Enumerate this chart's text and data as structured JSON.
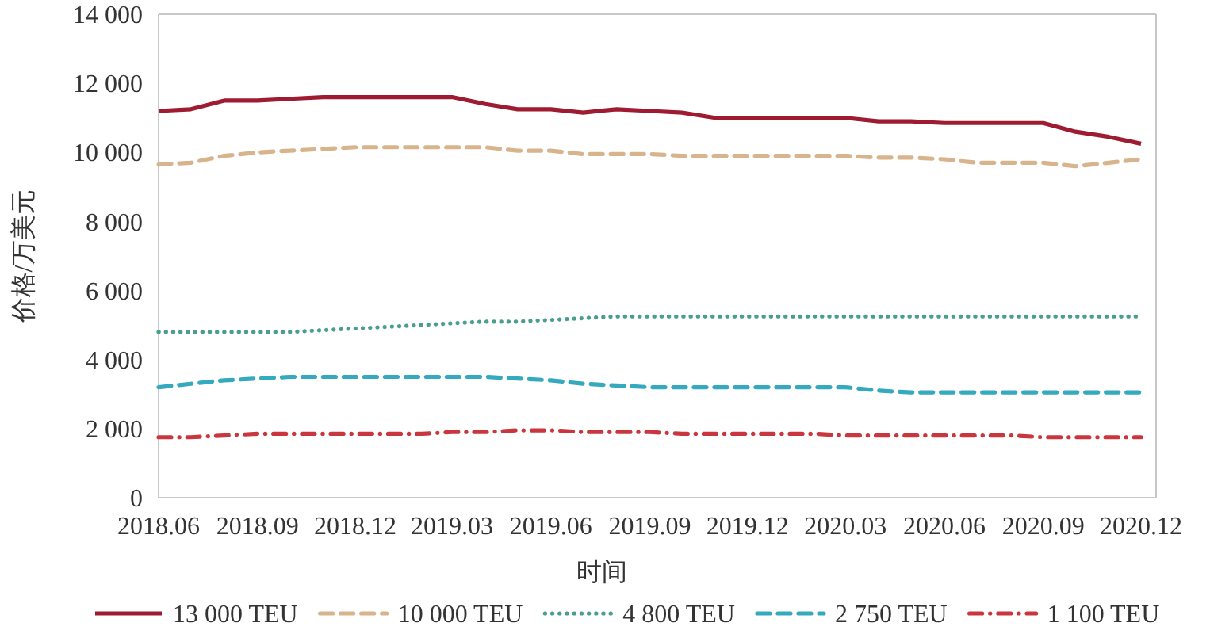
{
  "chart_data": {
    "type": "line",
    "xlabel": "时间",
    "ylabel": "价格/万美元",
    "x": [
      "2018-06",
      "2018-07",
      "2018-08",
      "2018-09",
      "2018-10",
      "2018-11",
      "2018-12",
      "2019-01",
      "2019-02",
      "2019-03",
      "2019-04",
      "2019-05",
      "2019-06",
      "2019-07",
      "2019-08",
      "2019-09",
      "2019-10",
      "2019-11",
      "2019-12",
      "2020-01",
      "2020-02",
      "2020-03",
      "2020-04",
      "2020-05",
      "2020-06",
      "2020-07",
      "2020-08",
      "2020-09",
      "2020-10",
      "2020-11",
      "2020-12"
    ],
    "xlim": [
      "2018-06",
      "2020-12-15"
    ],
    "xticks": [
      {
        "value": "2018-06",
        "label": "2018.06"
      },
      {
        "value": "2018-09",
        "label": "2018.09"
      },
      {
        "value": "2018-12",
        "label": "2018.12"
      },
      {
        "value": "2019-03",
        "label": "2019.03"
      },
      {
        "value": "2019-06",
        "label": "2019.06"
      },
      {
        "value": "2019-09",
        "label": "2019.09"
      },
      {
        "value": "2019-12",
        "label": "2019.12"
      },
      {
        "value": "2020-03",
        "label": "2020.03"
      },
      {
        "value": "2020-06",
        "label": "2020.06"
      },
      {
        "value": "2020-09",
        "label": "2020.09"
      },
      {
        "value": "2020-12",
        "label": "2020.12"
      }
    ],
    "ylim": [
      0,
      14000
    ],
    "yticks": [
      0,
      {
        "value": 2000,
        "label": "2 000"
      },
      {
        "value": 4000,
        "label": "4 000"
      },
      {
        "value": 6000,
        "label": "6 000"
      },
      {
        "value": 8000,
        "label": "8 000"
      },
      {
        "value": 10000,
        "label": "10 000"
      },
      {
        "value": 12000,
        "label": "12 000"
      },
      {
        "value": 14000,
        "label": "14 000"
      }
    ],
    "legend": "bottom",
    "series": [
      {
        "name": "13 000 TEU",
        "color": "#9e1b32",
        "line_style": "solid",
        "values": [
          11200,
          11250,
          11500,
          11500,
          11550,
          11600,
          11600,
          11600,
          11600,
          11600,
          11400,
          11250,
          11250,
          11150,
          11250,
          11200,
          11150,
          11000,
          11000,
          11000,
          11000,
          11000,
          10900,
          10900,
          10850,
          10850,
          10850,
          10850,
          10600,
          10450,
          10250
        ]
      },
      {
        "name": "10 000 TEU",
        "color": "#d8b48c",
        "line_style": "dashed",
        "values": [
          9650,
          9700,
          9900,
          10000,
          10050,
          10100,
          10150,
          10150,
          10150,
          10150,
          10150,
          10050,
          10050,
          9950,
          9950,
          9950,
          9900,
          9900,
          9900,
          9900,
          9900,
          9900,
          9850,
          9850,
          9800,
          9700,
          9700,
          9700,
          9600,
          9700,
          9800
        ]
      },
      {
        "name": "4 800 TEU",
        "color": "#4a9e8e",
        "line_style": "dotted",
        "values": [
          4800,
          4800,
          4800,
          4800,
          4800,
          4850,
          4900,
          4950,
          5000,
          5050,
          5100,
          5100,
          5150,
          5200,
          5250,
          5250,
          5250,
          5250,
          5250,
          5250,
          5250,
          5250,
          5250,
          5250,
          5250,
          5250,
          5250,
          5250,
          5250,
          5250,
          5250
        ]
      },
      {
        "name": "2 750 TEU",
        "color": "#35a9bd",
        "line_style": "dashed",
        "values": [
          3200,
          3300,
          3400,
          3450,
          3500,
          3500,
          3500,
          3500,
          3500,
          3500,
          3500,
          3450,
          3400,
          3300,
          3250,
          3200,
          3200,
          3200,
          3200,
          3200,
          3200,
          3200,
          3100,
          3050,
          3050,
          3050,
          3050,
          3050,
          3050,
          3050,
          3050
        ]
      },
      {
        "name": "1 100 TEU",
        "color": "#c9363e",
        "line_style": "dashdot",
        "values": [
          1750,
          1750,
          1800,
          1850,
          1850,
          1850,
          1850,
          1850,
          1850,
          1900,
          1900,
          1950,
          1950,
          1900,
          1900,
          1900,
          1850,
          1850,
          1850,
          1850,
          1850,
          1800,
          1800,
          1800,
          1800,
          1800,
          1800,
          1750,
          1750,
          1750,
          1750
        ]
      }
    ]
  }
}
